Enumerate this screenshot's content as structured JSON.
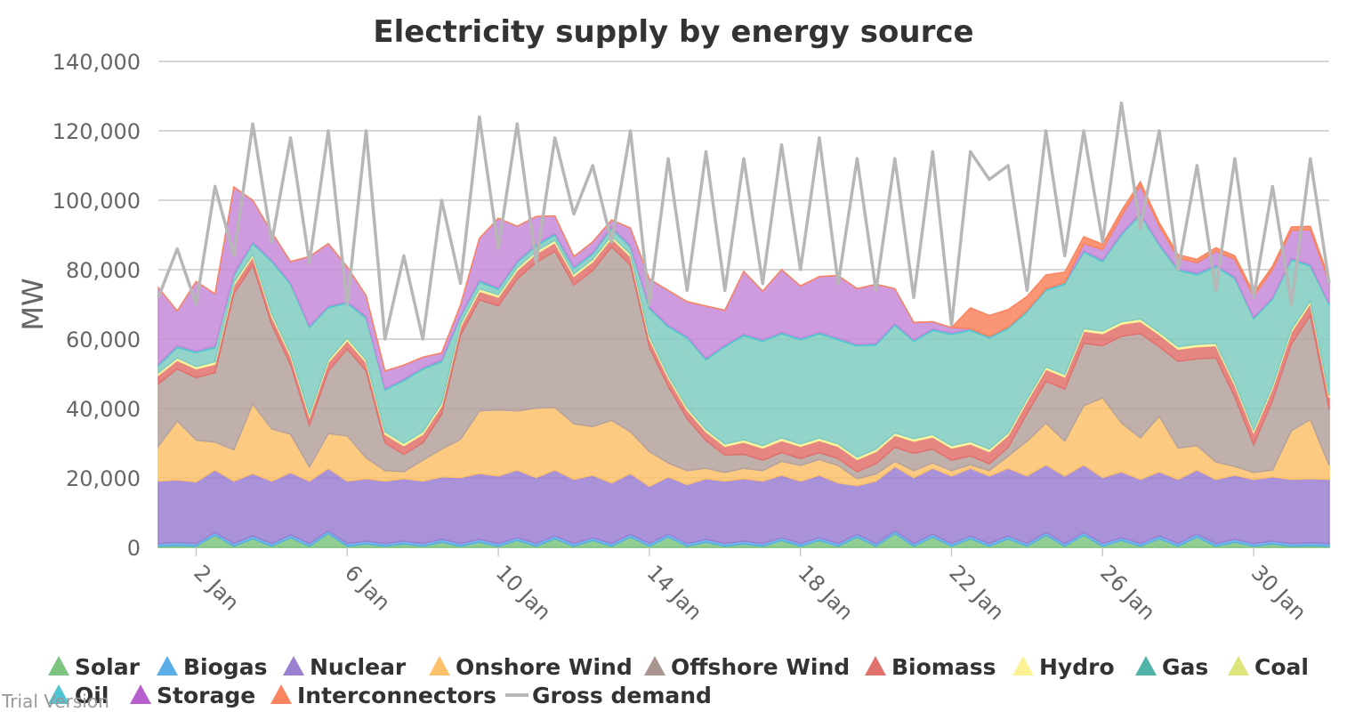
{
  "chart_data": {
    "type": "area",
    "title": "Electricity supply by energy source",
    "ylabel": "MW",
    "xlabel": "",
    "ylim": [
      0,
      140000
    ],
    "yticks": [
      0,
      20000,
      40000,
      60000,
      80000,
      100000,
      120000,
      140000
    ],
    "ytick_labels": [
      "0",
      "20,000",
      "40,000",
      "60,000",
      "80,000",
      "100,000",
      "120,000",
      "140,000"
    ],
    "x_unit": "day of January (fractional)",
    "xlim": [
      1,
      32
    ],
    "xticks": [
      2,
      6,
      10,
      14,
      18,
      22,
      26,
      30
    ],
    "xtick_labels": [
      "2 Jan",
      "6 Jan",
      "10 Jan",
      "14 Jan",
      "18 Jan",
      "22 Jan",
      "26 Jan",
      "30 Jan"
    ],
    "grid": true,
    "legend_position": "bottom",
    "stacked": true,
    "x": [
      1,
      1.5,
      2,
      2.5,
      3,
      3.5,
      4,
      4.5,
      5,
      5.5,
      6,
      6.5,
      7,
      7.5,
      8,
      8.5,
      9,
      9.5,
      10,
      10.5,
      11,
      11.5,
      12,
      12.5,
      13,
      13.5,
      14,
      14.5,
      15,
      15.5,
      16,
      16.5,
      17,
      17.5,
      18,
      18.5,
      19,
      19.5,
      20,
      20.5,
      21,
      21.5,
      22,
      22.5,
      23,
      23.5,
      24,
      24.5,
      25,
      25.5,
      26,
      26.5,
      27,
      27.5,
      28,
      28.5,
      29,
      29.5,
      30,
      30.5,
      31,
      31.5,
      32
    ],
    "series": [
      {
        "name": "Solar",
        "color": "#7cc47f",
        "values": [
          300,
          600,
          300,
          3500,
          300,
          2500,
          300,
          2800,
          300,
          4000,
          300,
          1000,
          300,
          1000,
          300,
          1500,
          300,
          1500,
          300,
          2000,
          300,
          2500,
          300,
          2000,
          300,
          3000,
          300,
          3000,
          300,
          1500,
          300,
          1000,
          300,
          2000,
          300,
          2000,
          300,
          3000,
          300,
          4000,
          300,
          3000,
          300,
          2500,
          300,
          2500,
          300,
          3500,
          300,
          3500,
          300,
          2000,
          300,
          2500,
          300,
          3000,
          300,
          1500,
          300,
          1000,
          300,
          500,
          300
        ]
      },
      {
        "name": "Biogas",
        "color": "#5aaee8",
        "values": [
          800,
          800,
          800,
          800,
          800,
          800,
          800,
          800,
          800,
          800,
          800,
          800,
          800,
          800,
          800,
          800,
          800,
          800,
          800,
          800,
          800,
          800,
          800,
          800,
          800,
          800,
          800,
          800,
          800,
          800,
          800,
          800,
          800,
          800,
          800,
          800,
          800,
          800,
          800,
          800,
          800,
          800,
          800,
          800,
          800,
          800,
          800,
          800,
          800,
          800,
          800,
          800,
          800,
          800,
          800,
          800,
          800,
          800,
          800,
          800,
          800,
          800,
          800
        ]
      },
      {
        "name": "Nuclear",
        "color": "#9b7fd1",
        "values": [
          18000,
          18000,
          17800,
          18000,
          18000,
          18000,
          18000,
          18000,
          18000,
          18000,
          18000,
          18000,
          18000,
          18000,
          18000,
          18000,
          19000,
          19000,
          19500,
          19500,
          19000,
          19000,
          18500,
          18000,
          17500,
          17500,
          16500,
          16500,
          17000,
          17500,
          18000,
          18000,
          18000,
          18000,
          18000,
          18000,
          17500,
          14000,
          18000,
          18500,
          19000,
          19000,
          19500,
          19500,
          19500,
          19500,
          19500,
          19500,
          19500,
          19500,
          19000,
          19000,
          18500,
          18500,
          18500,
          18500,
          18500,
          18500,
          18500,
          18500,
          18500,
          18500,
          18500
        ]
      },
      {
        "name": "Onshore Wind",
        "color": "#fcc26b",
        "values": [
          10000,
          17000,
          12000,
          8000,
          9000,
          20000,
          15000,
          11000,
          4000,
          10000,
          13000,
          6000,
          3000,
          2000,
          6000,
          8000,
          11000,
          18000,
          19000,
          17000,
          20000,
          18000,
          16000,
          14000,
          18000,
          12000,
          10000,
          4000,
          4000,
          3000,
          2500,
          3000,
          3000,
          4000,
          4500,
          4500,
          5000,
          2000,
          2000,
          1500,
          2000,
          1500,
          1500,
          1000,
          1500,
          3500,
          10000,
          12000,
          10000,
          17000,
          23000,
          14000,
          12000,
          16000,
          9000,
          7000,
          5000,
          2500,
          2000,
          2000,
          14000,
          17000,
          4000
        ]
      },
      {
        "name": "Offshore Wind",
        "color": "#b5a29d",
        "values": [
          18000,
          15000,
          18000,
          20000,
          45000,
          40000,
          30000,
          20000,
          12000,
          18000,
          25000,
          25000,
          8000,
          5000,
          5000,
          10000,
          30000,
          32000,
          30000,
          38000,
          42000,
          45000,
          40000,
          45000,
          50000,
          48000,
          30000,
          22000,
          15000,
          8000,
          5000,
          4000,
          3000,
          2500,
          2000,
          2000,
          2000,
          2000,
          3000,
          4000,
          5000,
          4000,
          3000,
          2500,
          2000,
          2500,
          8000,
          12000,
          15000,
          18000,
          15000,
          25000,
          30000,
          20000,
          25000,
          25000,
          30000,
          20000,
          8000,
          20000,
          25000,
          30000,
          16000
        ]
      },
      {
        "name": "Biomass",
        "color": "#e0716d",
        "values": [
          2500,
          2500,
          2500,
          2500,
          2500,
          2500,
          2500,
          2500,
          2500,
          2500,
          2500,
          2500,
          2500,
          2500,
          2500,
          2500,
          2500,
          2500,
          2500,
          2500,
          2500,
          2500,
          2500,
          2500,
          2500,
          2500,
          2500,
          2500,
          2500,
          2500,
          2500,
          3500,
          3500,
          3500,
          3500,
          3500,
          3500,
          3500,
          3500,
          3500,
          3500,
          3500,
          3500,
          3500,
          3500,
          3500,
          3500,
          3500,
          3500,
          3500,
          3500,
          3500,
          3500,
          3500,
          3500,
          3500,
          3500,
          3500,
          3500,
          3500,
          3500,
          3500,
          3500
        ]
      },
      {
        "name": "Hydro",
        "color": "#fbf296",
        "values": [
          700,
          700,
          700,
          700,
          700,
          700,
          700,
          700,
          700,
          700,
          700,
          700,
          700,
          700,
          700,
          700,
          700,
          700,
          700,
          700,
          700,
          700,
          700,
          700,
          700,
          700,
          700,
          700,
          700,
          700,
          700,
          700,
          700,
          700,
          700,
          700,
          700,
          700,
          700,
          700,
          700,
          700,
          700,
          700,
          700,
          700,
          700,
          700,
          700,
          700,
          700,
          700,
          700,
          700,
          700,
          700,
          700,
          700,
          700,
          700,
          700,
          700,
          700
        ]
      },
      {
        "name": "Gas",
        "color": "#7fcbc1",
        "values": [
          2000,
          3000,
          4000,
          4000,
          2000,
          3000,
          15000,
          20000,
          25000,
          15000,
          10000,
          12000,
          12000,
          18000,
          18000,
          12000,
          2000,
          2000,
          1500,
          1500,
          1500,
          1500,
          1500,
          1500,
          2000,
          2000,
          8000,
          14000,
          20000,
          20000,
          28000,
          30000,
          30000,
          30000,
          30000,
          30000,
          30000,
          32000,
          30000,
          31000,
          28000,
          30000,
          32000,
          32000,
          32000,
          30000,
          25000,
          22000,
          26000,
          22000,
          20000,
          25000,
          30000,
          25000,
          22000,
          20000,
          22000,
          30000,
          32000,
          25000,
          20000,
          10000,
          26000
        ]
      },
      {
        "name": "Coal",
        "color": "#dde47a",
        "values": [
          0,
          0,
          0,
          0,
          0,
          0,
          0,
          0,
          0,
          0,
          0,
          0,
          0,
          0,
          0,
          0,
          0,
          0,
          0,
          0,
          0,
          0,
          0,
          0,
          0,
          0,
          0,
          0,
          0,
          0,
          0,
          0,
          0,
          0,
          0,
          0,
          0,
          0,
          0,
          0,
          0,
          0,
          0,
          0,
          0,
          0,
          0,
          0,
          0,
          0,
          0,
          0,
          0,
          0,
          0,
          0,
          0,
          0,
          0,
          0,
          0,
          0,
          0
        ]
      },
      {
        "name": "Oil",
        "color": "#4ec4d4",
        "values": [
          500,
          500,
          500,
          500,
          500,
          500,
          500,
          500,
          500,
          500,
          500,
          500,
          500,
          500,
          500,
          500,
          500,
          500,
          500,
          500,
          500,
          500,
          500,
          500,
          500,
          500,
          500,
          500,
          500,
          500,
          500,
          500,
          500,
          500,
          500,
          500,
          500,
          500,
          500,
          500,
          500,
          500,
          500,
          500,
          500,
          500,
          500,
          500,
          500,
          500,
          500,
          500,
          500,
          500,
          500,
          500,
          500,
          500,
          500,
          500,
          500,
          500,
          500
        ]
      },
      {
        "name": "Storage",
        "color": "#c58ad9",
        "values": [
          22000,
          10000,
          20000,
          15000,
          25000,
          12000,
          8000,
          6000,
          20000,
          18000,
          10000,
          6000,
          5000,
          4000,
          3000,
          2000,
          3000,
          12000,
          20000,
          10000,
          8000,
          5000,
          3000,
          3000,
          2000,
          5000,
          8000,
          10000,
          10000,
          15000,
          10000,
          18000,
          14000,
          18000,
          15000,
          16000,
          18000,
          16000,
          17000,
          10000,
          5000,
          2000,
          1500,
          0,
          0,
          0,
          0,
          0,
          0,
          2000,
          3000,
          5000,
          8000,
          5000,
          3000,
          3000,
          4000,
          5000,
          6000,
          8000,
          8000,
          10000,
          6000
        ]
      },
      {
        "name": "Interconnectors",
        "color": "#f9845e",
        "values": [
          0,
          0,
          0,
          0,
          0,
          0,
          0,
          0,
          0,
          0,
          0,
          0,
          0,
          0,
          0,
          0,
          0,
          0,
          0,
          0,
          0,
          0,
          0,
          0,
          0,
          0,
          0,
          0,
          0,
          0,
          0,
          0,
          0,
          0,
          0,
          0,
          0,
          0,
          0,
          0,
          0,
          0,
          0,
          6000,
          6000,
          5000,
          4000,
          4000,
          3000,
          2000,
          1500,
          1500,
          1000,
          1000,
          1000,
          1000,
          1000,
          1000,
          1000,
          1000,
          1000,
          1000,
          1000
        ]
      }
    ],
    "gross_demand": {
      "name": "Gross demand",
      "color": "#b7b7b7",
      "values": [
        72000,
        86000,
        70000,
        104000,
        84000,
        122000,
        88000,
        118000,
        82000,
        120000,
        70000,
        120000,
        60000,
        84000,
        60000,
        100000,
        76000,
        124000,
        86000,
        122000,
        82000,
        118000,
        96000,
        110000,
        88000,
        120000,
        70000,
        112000,
        74000,
        114000,
        74000,
        112000,
        76000,
        116000,
        80000,
        118000,
        76000,
        112000,
        74000,
        112000,
        72000,
        114000,
        64000,
        114000,
        106000,
        110000,
        74000,
        120000,
        84000,
        120000,
        88000,
        128000,
        92000,
        120000,
        80000,
        110000,
        74000,
        112000,
        72000,
        104000,
        70000,
        112000,
        76000
      ]
    }
  },
  "legend": [
    {
      "label": "Solar",
      "color": "#7cc47f",
      "marker": "triangle"
    },
    {
      "label": "Biogas",
      "color": "#5aaee8",
      "marker": "triangle"
    },
    {
      "label": "Nuclear",
      "color": "#9b7fd1",
      "marker": "triangle"
    },
    {
      "label": "Onshore Wind",
      "color": "#fcc26b",
      "marker": "triangle"
    },
    {
      "label": "Offshore Wind",
      "color": "#a99590",
      "marker": "triangle"
    },
    {
      "label": "Biomass",
      "color": "#e0716d",
      "marker": "triangle"
    },
    {
      "label": "Hydro",
      "color": "#fbf296",
      "marker": "triangle"
    },
    {
      "label": "Gas",
      "color": "#4fb3a8",
      "marker": "triangle"
    },
    {
      "label": "Coal",
      "color": "#dde47a",
      "marker": "triangle"
    },
    {
      "label": "Oil",
      "color": "#4ec4d4",
      "marker": "triangle"
    },
    {
      "label": "Storage",
      "color": "#b85fd0",
      "marker": "triangle"
    },
    {
      "label": "Interconnectors",
      "color": "#f9845e",
      "marker": "triangle"
    },
    {
      "label": "Gross demand",
      "color": "#b7b7b7",
      "marker": "line"
    }
  ],
  "watermark": "Trial Version"
}
